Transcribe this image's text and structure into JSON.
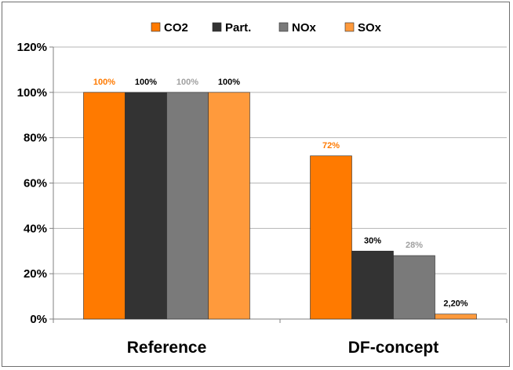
{
  "chart_data": {
    "type": "bar",
    "categories": [
      "Reference",
      "DF-concept"
    ],
    "series": [
      {
        "name": "CO2",
        "values": [
          100,
          72
        ],
        "labels": [
          "100%",
          "72%"
        ],
        "color": "#ff7a00",
        "label_color": "#ff7a00"
      },
      {
        "name": "Part.",
        "values": [
          100,
          30
        ],
        "labels": [
          "100%",
          "30%"
        ],
        "color": "#333333",
        "label_color": "#000000"
      },
      {
        "name": "NOx",
        "values": [
          100,
          28
        ],
        "labels": [
          "100%",
          "28%"
        ],
        "color": "#7a7a7a",
        "label_color": "#a0a0a0"
      },
      {
        "name": "SOx",
        "values": [
          100,
          2.2
        ],
        "labels": [
          "100%",
          "2,20%"
        ],
        "color": "#ff9a3c",
        "label_color": "#000000"
      }
    ],
    "y_ticks": [
      "0%",
      "20%",
      "40%",
      "60%",
      "80%",
      "100%",
      "120%"
    ],
    "ylim": [
      0,
      120
    ],
    "grid": true,
    "legend_position": "top"
  }
}
